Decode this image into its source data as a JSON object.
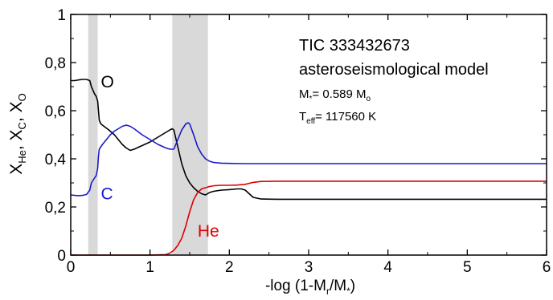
{
  "chart_data": {
    "type": "line",
    "xlabel": {
      "base": "-log (1-M",
      "sub1": "r",
      "mid": "/M",
      "sub2": "*",
      "end": ")"
    },
    "ylabel": {
      "p1": "X",
      "s1": "He",
      "p2": ", X",
      "s2": "C",
      "p3": ", X",
      "s3": "O"
    },
    "xlim": [
      0,
      6
    ],
    "ylim": [
      0,
      1
    ],
    "x_ticks": [
      0,
      1,
      2,
      3,
      4,
      5,
      6
    ],
    "x_tick_labels": [
      "0",
      "1",
      "2",
      "3",
      "4",
      "5",
      "6"
    ],
    "y_ticks": [
      0,
      0.2,
      0.4,
      0.6,
      0.8,
      1
    ],
    "y_tick_labels": [
      "0",
      "0,2",
      "0,4",
      "0,6",
      "0,8",
      "1"
    ],
    "shaded_regions": [
      [
        0.22,
        0.34
      ],
      [
        1.28,
        1.73
      ]
    ],
    "shade_color": "#d9d9d9",
    "annotation": {
      "line1": "TIC 333432673",
      "line2": "asteroseismological model",
      "mass": {
        "base": "M",
        "sub": "*",
        "value": "= 0.589 M",
        "sub2": "o"
      },
      "teff": {
        "base": "T",
        "sub": "eff",
        "value": "= 117560 K"
      }
    },
    "series": [
      {
        "name": "O",
        "color": "#000000",
        "x": [
          0.0,
          0.05,
          0.1,
          0.15,
          0.2,
          0.24,
          0.26,
          0.3,
          0.32,
          0.34,
          0.35,
          0.36,
          0.38,
          0.42,
          0.48,
          0.55,
          0.6,
          0.65,
          0.7,
          0.75,
          0.8,
          0.9,
          1.0,
          1.1,
          1.2,
          1.25,
          1.28,
          1.3,
          1.35,
          1.4,
          1.45,
          1.5,
          1.55,
          1.6,
          1.65,
          1.7,
          1.75,
          1.8,
          1.9,
          2.0,
          2.1,
          2.15,
          2.2,
          2.25,
          2.3,
          2.4,
          2.6,
          3.0,
          4.0,
          5.0,
          6.0
        ],
        "y": [
          0.725,
          0.725,
          0.728,
          0.73,
          0.73,
          0.725,
          0.7,
          0.67,
          0.66,
          0.64,
          0.6,
          0.56,
          0.545,
          0.535,
          0.52,
          0.5,
          0.48,
          0.46,
          0.445,
          0.435,
          0.44,
          0.455,
          0.47,
          0.49,
          0.51,
          0.52,
          0.525,
          0.52,
          0.45,
          0.38,
          0.33,
          0.3,
          0.28,
          0.265,
          0.255,
          0.25,
          0.26,
          0.265,
          0.27,
          0.272,
          0.275,
          0.275,
          0.27,
          0.255,
          0.24,
          0.233,
          0.232,
          0.232,
          0.232,
          0.232,
          0.232
        ]
      },
      {
        "name": "C",
        "color": "#1a1acc",
        "x": [
          0.0,
          0.05,
          0.1,
          0.15,
          0.2,
          0.24,
          0.26,
          0.3,
          0.32,
          0.34,
          0.35,
          0.36,
          0.4,
          0.45,
          0.5,
          0.55,
          0.6,
          0.65,
          0.7,
          0.75,
          0.8,
          0.9,
          1.0,
          1.1,
          1.2,
          1.25,
          1.28,
          1.3,
          1.35,
          1.4,
          1.45,
          1.48,
          1.5,
          1.55,
          1.6,
          1.65,
          1.7,
          1.75,
          1.8,
          1.9,
          2.0,
          2.2,
          2.5,
          3.0,
          4.0,
          5.0,
          6.0
        ],
        "y": [
          0.25,
          0.248,
          0.247,
          0.248,
          0.252,
          0.27,
          0.3,
          0.32,
          0.33,
          0.36,
          0.41,
          0.44,
          0.46,
          0.48,
          0.5,
          0.515,
          0.525,
          0.535,
          0.54,
          0.535,
          0.525,
          0.5,
          0.48,
          0.46,
          0.445,
          0.44,
          0.44,
          0.44,
          0.48,
          0.52,
          0.545,
          0.55,
          0.545,
          0.5,
          0.45,
          0.42,
          0.4,
          0.39,
          0.385,
          0.382,
          0.381,
          0.38,
          0.38,
          0.38,
          0.38,
          0.38,
          0.38
        ]
      },
      {
        "name": "He",
        "color": "#e00000",
        "x": [
          0.0,
          0.5,
          1.0,
          1.2,
          1.25,
          1.3,
          1.35,
          1.4,
          1.45,
          1.5,
          1.55,
          1.6,
          1.65,
          1.7,
          1.75,
          1.8,
          1.9,
          2.0,
          2.1,
          2.2,
          2.3,
          2.4,
          2.6,
          3.0,
          4.0,
          5.0,
          6.0
        ],
        "y": [
          0.0,
          0.0,
          0.0,
          0.002,
          0.008,
          0.02,
          0.04,
          0.07,
          0.12,
          0.18,
          0.23,
          0.26,
          0.275,
          0.28,
          0.285,
          0.288,
          0.29,
          0.29,
          0.291,
          0.294,
          0.302,
          0.306,
          0.307,
          0.307,
          0.307,
          0.307,
          0.307
        ]
      }
    ],
    "series_labels": [
      {
        "text": "O",
        "x": 0.38,
        "y": 0.72,
        "color": "#000000"
      },
      {
        "text": "C",
        "x": 0.38,
        "y": 0.255,
        "color": "#1a1acc"
      },
      {
        "text": "He",
        "x": 1.6,
        "y": 0.1,
        "color": "#e00000"
      }
    ]
  }
}
